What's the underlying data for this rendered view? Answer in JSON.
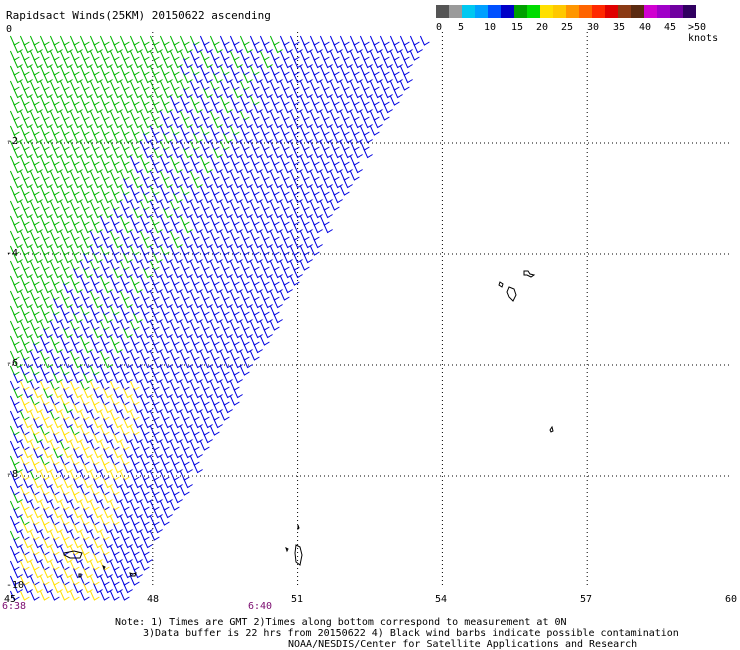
{
  "title": "Rapidsact Winds(25KM) 20150622 ascending",
  "colorbar": {
    "labels": [
      "0",
      "5",
      "10",
      "15",
      "20",
      "25",
      "30",
      "35",
      "40",
      "45",
      ">50 knots"
    ],
    "colors": [
      "#555555",
      "#9a9a9a",
      "#00c8f0",
      "#00a0ff",
      "#0050ff",
      "#0000c8",
      "#00a000",
      "#00dc00",
      "#ffe000",
      "#ffc800",
      "#ff9600",
      "#ff6400",
      "#ff2800",
      "#e00000",
      "#8a3a14",
      "#5a2a10",
      "#d000d0",
      "#a000c8",
      "#7000a0",
      "#300060"
    ]
  },
  "axes": {
    "x_labels": [
      "45",
      "48",
      "51",
      "54",
      "57",
      "60"
    ],
    "y_labels": [
      "0",
      "-2",
      "-4",
      "-6",
      "-8",
      "-10"
    ]
  },
  "times": [
    "6:38",
    "6:40"
  ],
  "notes": {
    "line1": "Note: 1) Times are GMT 2)Times along bottom correspond to measurement at 0N",
    "line2": "3)Data buffer is 22 hrs from 20150622 4) Black wind barbs indicate possible contamination",
    "line3": "NOAA/NESDIS/Center for Satellite Applications and Research"
  },
  "map_data": {
    "lon_range": [
      45,
      60
    ],
    "lat_range": [
      -10,
      0
    ],
    "barb_colors": {
      "blue": "#0000e0",
      "green": "#00b400",
      "yellow": "#ffe000",
      "black": "#000000"
    }
  }
}
